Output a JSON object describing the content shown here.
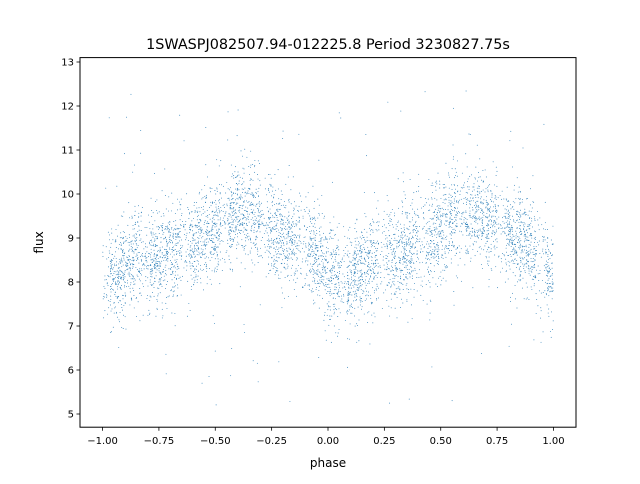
{
  "chart_data": {
    "type": "scatter",
    "title": "1SWASPJ082507.94-012225.8 Period 3230827.75s",
    "xlabel": "phase",
    "ylabel": "flux",
    "xlim": [
      -1.1,
      1.1
    ],
    "ylim": [
      4.7,
      13.1
    ],
    "xticks": [
      -1.0,
      -0.75,
      -0.5,
      -0.25,
      0.0,
      0.25,
      0.5,
      0.75,
      1.0
    ],
    "xtick_labels": [
      "−1.00",
      "−0.75",
      "−0.50",
      "−0.25",
      "0.00",
      "0.25",
      "0.50",
      "0.75",
      "1.00"
    ],
    "yticks": [
      5,
      6,
      7,
      8,
      9,
      10,
      11,
      12,
      13
    ],
    "ytick_labels": [
      "5",
      "6",
      "7",
      "8",
      "9",
      "10",
      "11",
      "12",
      "13"
    ],
    "grid": false,
    "legend": "none",
    "marker_color": "#1f77b4",
    "series": [
      {
        "points_per_phase_unit": 3000,
        "phase_range": [
          -1.0,
          1.0
        ],
        "trend": {
          "phase": [
            -1.0,
            -0.93,
            -0.85,
            -0.75,
            -0.68,
            -0.62,
            -0.55,
            -0.45,
            -0.35,
            -0.25,
            -0.15,
            -0.05,
            0.0,
            0.07,
            0.15,
            0.25,
            0.32,
            0.38,
            0.45,
            0.55,
            0.65,
            0.75,
            0.85,
            0.95,
            1.0
          ],
          "flux": [
            8.0,
            8.2,
            8.6,
            8.6,
            8.7,
            8.9,
            9.0,
            9.4,
            9.6,
            9.2,
            9.0,
            8.6,
            8.2,
            8.0,
            8.3,
            8.6,
            8.6,
            8.8,
            8.9,
            9.4,
            9.6,
            9.3,
            9.0,
            8.5,
            8.0
          ]
        },
        "scatter_sd": 0.55,
        "outlier_range": [
          5.2,
          12.4
        ]
      }
    ]
  }
}
